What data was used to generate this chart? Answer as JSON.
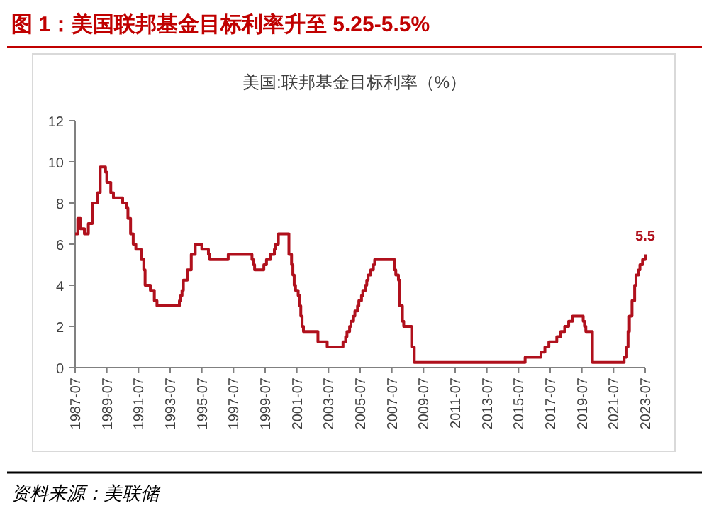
{
  "chart_data": {
    "type": "step",
    "title": "图 1：美国联邦基金目标利率升至 5.25-5.5%",
    "subtitle": "美国:联邦基金目标利率（%）",
    "x": [
      "1987-07",
      "1987-09",
      "1987-11",
      "1988-02",
      "1988-05",
      "1988-08",
      "1988-12",
      "1989-02",
      "1989-06",
      "1989-07",
      "1989-10",
      "1989-12",
      "1990-07",
      "1990-10",
      "1990-11",
      "1991-01",
      "1991-03",
      "1991-05",
      "1991-09",
      "1991-11",
      "1991-12",
      "1992-04",
      "1992-07",
      "1992-09",
      "1994-02",
      "1994-03",
      "1994-04",
      "1994-05",
      "1994-08",
      "1994-11",
      "1995-02",
      "1995-07",
      "1995-12",
      "1996-01",
      "1997-03",
      "1998-09",
      "1998-10",
      "1998-11",
      "1999-06",
      "1999-08",
      "1999-11",
      "2000-02",
      "2000-03",
      "2000-05",
      "2001-01",
      "2001-03",
      "2001-04",
      "2001-05",
      "2001-06",
      "2001-08",
      "2001-09",
      "2001-10",
      "2001-11",
      "2001-12",
      "2002-11",
      "2003-06",
      "2004-06",
      "2004-08",
      "2004-09",
      "2004-11",
      "2004-12",
      "2005-02",
      "2005-03",
      "2005-05",
      "2005-06",
      "2005-08",
      "2005-09",
      "2005-11",
      "2005-12",
      "2006-01",
      "2006-03",
      "2006-05",
      "2006-06",
      "2007-09",
      "2007-10",
      "2007-12",
      "2008-01",
      "2008-03",
      "2008-04",
      "2008-10",
      "2008-12",
      "2015-12",
      "2016-12",
      "2017-03",
      "2017-06",
      "2017-12",
      "2018-03",
      "2018-06",
      "2018-09",
      "2018-12",
      "2019-08",
      "2019-09",
      "2019-10",
      "2020-03",
      "2022-03",
      "2022-05",
      "2022-06",
      "2022-07",
      "2022-09",
      "2022-11",
      "2022-12",
      "2023-02",
      "2023-03",
      "2023-05",
      "2023-07"
    ],
    "series": [
      {
        "color": "#b0101c",
        "values": [
          6.5,
          7.25,
          6.75,
          6.5,
          7.0,
          8.0,
          8.5,
          9.75,
          9.5,
          9.0,
          8.5,
          8.25,
          8.0,
          7.75,
          7.25,
          6.5,
          6.0,
          5.75,
          5.25,
          4.75,
          4.0,
          3.75,
          3.25,
          3.0,
          3.25,
          3.5,
          3.75,
          4.25,
          4.75,
          5.5,
          6.0,
          5.75,
          5.5,
          5.25,
          5.5,
          5.25,
          5.0,
          4.75,
          5.0,
          5.25,
          5.5,
          5.75,
          6.0,
          6.5,
          5.5,
          5.0,
          4.5,
          4.0,
          3.75,
          3.5,
          3.0,
          2.5,
          2.0,
          1.75,
          1.25,
          1.0,
          1.25,
          1.5,
          1.75,
          2.0,
          2.25,
          2.5,
          2.75,
          3.0,
          3.25,
          3.5,
          3.75,
          4.0,
          4.25,
          4.5,
          4.75,
          5.0,
          5.25,
          4.75,
          4.5,
          4.25,
          3.0,
          2.25,
          2.0,
          1.0,
          0.25,
          0.5,
          0.75,
          1.0,
          1.25,
          1.5,
          1.75,
          2.0,
          2.25,
          2.5,
          2.25,
          2.0,
          1.75,
          0.25,
          0.5,
          1.0,
          1.75,
          2.5,
          3.25,
          4.0,
          4.5,
          4.75,
          5.0,
          5.25,
          5.5
        ]
      }
    ],
    "xlim": [
      "1987-07",
      "2023-07"
    ],
    "xticks": [
      "1987-07",
      "1989-07",
      "1991-07",
      "1993-07",
      "1995-07",
      "1997-07",
      "1999-07",
      "2001-07",
      "2003-07",
      "2005-07",
      "2007-07",
      "2009-07",
      "2011-07",
      "2013-07",
      "2015-07",
      "2017-07",
      "2019-07",
      "2021-07",
      "2023-07"
    ],
    "ylim": [
      0,
      12
    ],
    "yticks": [
      0,
      2,
      4,
      6,
      8,
      10,
      12
    ],
    "grid": false,
    "annotations": [
      {
        "text": "5.5",
        "x": "2023-07",
        "y": 5.5
      },
      "资料来源：美联储"
    ]
  }
}
